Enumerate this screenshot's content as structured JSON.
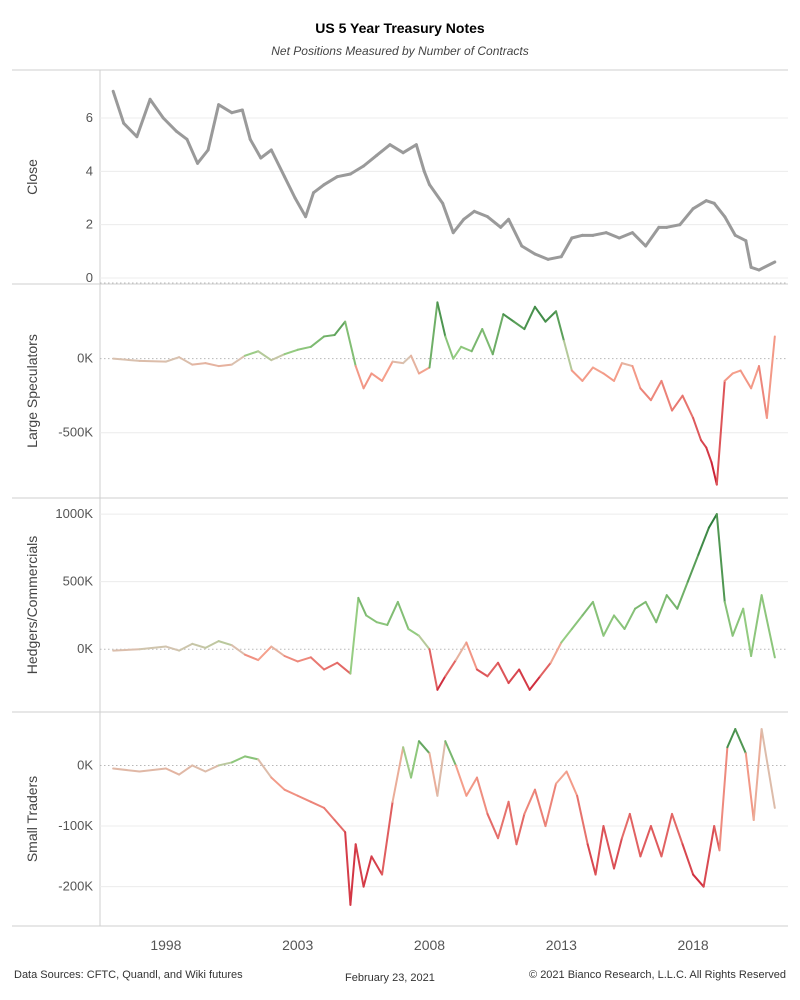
{
  "title": "US 5 Year Treasury Notes",
  "subtitle": "Net Positions Measured by Number of Contracts",
  "footer": {
    "sources": "Data Sources: CFTC, Quandl, and Wiki futures",
    "date": "February 23, 2021",
    "copyright": "© 2021 Bianco Research, L.L.C. All Rights Reserved"
  },
  "chart_data": [
    {
      "type": "line",
      "ylabel": "Close",
      "color": "#9a9a9a",
      "ylim": [
        0,
        7.5
      ],
      "yticks": [
        0,
        2,
        4,
        6
      ],
      "ytick_labels": [
        "0",
        "2",
        "4",
        "6"
      ],
      "x": [
        1996.0,
        1996.4,
        1996.9,
        1997.4,
        1997.9,
        1998.4,
        1998.8,
        1999.2,
        1999.6,
        2000.0,
        2000.5,
        2000.9,
        2001.2,
        2001.6,
        2002.0,
        2002.5,
        2002.9,
        2003.3,
        2003.6,
        2004.0,
        2004.5,
        2005.0,
        2005.5,
        2006.0,
        2006.5,
        2007.0,
        2007.5,
        2007.8,
        2008.0,
        2008.5,
        2008.9,
        2009.3,
        2009.7,
        2010.2,
        2010.7,
        2011.0,
        2011.5,
        2012.0,
        2012.5,
        2013.0,
        2013.4,
        2013.8,
        2014.2,
        2014.7,
        2015.2,
        2015.7,
        2016.2,
        2016.7,
        2017.0,
        2017.5,
        2018.0,
        2018.5,
        2018.8,
        2019.2,
        2019.6,
        2020.0,
        2020.2,
        2020.5,
        2021.1
      ],
      "values": [
        7.0,
        5.8,
        5.3,
        6.7,
        6.0,
        5.5,
        5.2,
        4.3,
        4.8,
        6.5,
        6.2,
        6.3,
        5.2,
        4.5,
        4.8,
        3.8,
        3.0,
        2.3,
        3.2,
        3.5,
        3.8,
        3.9,
        4.2,
        4.6,
        5.0,
        4.7,
        5.0,
        4.0,
        3.5,
        2.8,
        1.7,
        2.2,
        2.5,
        2.3,
        1.9,
        2.2,
        1.2,
        0.9,
        0.7,
        0.8,
        1.5,
        1.6,
        1.6,
        1.7,
        1.5,
        1.7,
        1.2,
        1.9,
        1.9,
        2.0,
        2.6,
        2.9,
        2.8,
        2.3,
        1.6,
        1.4,
        0.4,
        0.3,
        0.6
      ]
    },
    {
      "type": "line",
      "ylabel": "Large Speculators",
      "ylim": [
        -900000,
        450000
      ],
      "yticks": [
        0,
        -500000
      ],
      "ytick_labels": [
        "0K",
        "-500K"
      ],
      "x": [
        1996.0,
        1997.0,
        1998.0,
        1998.5,
        1999.0,
        1999.5,
        2000.0,
        2000.5,
        2001.0,
        2001.5,
        2002.0,
        2002.5,
        2003.0,
        2003.5,
        2004.0,
        2004.4,
        2004.8,
        2005.2,
        2005.5,
        2005.8,
        2006.2,
        2006.6,
        2007.0,
        2007.3,
        2007.6,
        2008.0,
        2008.3,
        2008.6,
        2008.9,
        2009.2,
        2009.6,
        2010.0,
        2010.4,
        2010.8,
        2011.2,
        2011.6,
        2012.0,
        2012.4,
        2012.8,
        2013.1,
        2013.4,
        2013.8,
        2014.2,
        2014.6,
        2015.0,
        2015.3,
        2015.7,
        2016.0,
        2016.4,
        2016.8,
        2017.2,
        2017.6,
        2018.0,
        2018.3,
        2018.5,
        2018.7,
        2018.9,
        2019.2,
        2019.5,
        2019.8,
        2020.2,
        2020.5,
        2020.8,
        2021.1
      ],
      "values": [
        0,
        -15000,
        -20000,
        10000,
        -40000,
        -30000,
        -50000,
        -40000,
        20000,
        50000,
        -10000,
        30000,
        60000,
        80000,
        150000,
        160000,
        250000,
        -50000,
        -200000,
        -100000,
        -150000,
        -20000,
        -30000,
        20000,
        -100000,
        -60000,
        380000,
        150000,
        0,
        80000,
        50000,
        200000,
        30000,
        300000,
        250000,
        200000,
        350000,
        250000,
        320000,
        120000,
        -80000,
        -150000,
        -60000,
        -100000,
        -150000,
        -30000,
        -50000,
        -200000,
        -280000,
        -150000,
        -350000,
        -250000,
        -400000,
        -550000,
        -600000,
        -700000,
        -850000,
        -150000,
        -100000,
        -80000,
        -200000,
        -50000,
        -400000,
        150000
      ]
    },
    {
      "type": "line",
      "ylabel": "Hedgers/Commercials",
      "ylim": [
        -420000,
        1060000
      ],
      "yticks": [
        1000000,
        500000,
        0
      ],
      "ytick_labels": [
        "1000K",
        "500K",
        "0K"
      ],
      "x": [
        1996.0,
        1997.0,
        1998.0,
        1998.5,
        1999.0,
        1999.5,
        2000.0,
        2000.5,
        2001.0,
        2001.5,
        2002.0,
        2002.5,
        2003.0,
        2003.5,
        2004.0,
        2004.5,
        2005.0,
        2005.3,
        2005.6,
        2006.0,
        2006.4,
        2006.8,
        2007.2,
        2007.6,
        2008.0,
        2008.3,
        2008.6,
        2009.0,
        2009.4,
        2009.8,
        2010.2,
        2010.6,
        2011.0,
        2011.4,
        2011.8,
        2012.2,
        2012.6,
        2013.0,
        2013.4,
        2013.8,
        2014.2,
        2014.6,
        2015.0,
        2015.4,
        2015.8,
        2016.2,
        2016.6,
        2017.0,
        2017.4,
        2017.8,
        2018.2,
        2018.6,
        2018.9,
        2019.2,
        2019.5,
        2019.9,
        2020.2,
        2020.6,
        2021.1
      ],
      "values": [
        -10000,
        0,
        20000,
        -10000,
        40000,
        10000,
        60000,
        30000,
        -40000,
        -80000,
        20000,
        -50000,
        -90000,
        -60000,
        -150000,
        -100000,
        -180000,
        380000,
        250000,
        200000,
        180000,
        350000,
        150000,
        100000,
        0,
        -300000,
        -200000,
        -80000,
        50000,
        -150000,
        -200000,
        -100000,
        -250000,
        -150000,
        -300000,
        -200000,
        -100000,
        50000,
        150000,
        250000,
        350000,
        100000,
        250000,
        150000,
        300000,
        350000,
        200000,
        400000,
        300000,
        500000,
        700000,
        900000,
        1000000,
        350000,
        100000,
        300000,
        -50000,
        400000,
        -60000
      ]
    },
    {
      "type": "line",
      "ylabel": "Small Traders",
      "ylim": [
        -255000,
        75000
      ],
      "yticks": [
        0,
        -100000,
        -200000
      ],
      "ytick_labels": [
        "0K",
        "-100K",
        "-200K"
      ],
      "x": [
        1996.0,
        1997.0,
        1998.0,
        1998.5,
        1999.0,
        1999.5,
        2000.0,
        2000.5,
        2001.0,
        2001.5,
        2002.0,
        2002.5,
        2003.0,
        2003.5,
        2004.0,
        2004.4,
        2004.8,
        2005.0,
        2005.2,
        2005.5,
        2005.8,
        2006.2,
        2006.6,
        2007.0,
        2007.3,
        2007.6,
        2008.0,
        2008.3,
        2008.6,
        2009.0,
        2009.4,
        2009.8,
        2010.2,
        2010.6,
        2011.0,
        2011.3,
        2011.6,
        2012.0,
        2012.4,
        2012.8,
        2013.2,
        2013.6,
        2014.0,
        2014.3,
        2014.6,
        2015.0,
        2015.3,
        2015.6,
        2016.0,
        2016.4,
        2016.8,
        2017.2,
        2017.6,
        2018.0,
        2018.4,
        2018.8,
        2019.0,
        2019.3,
        2019.6,
        2020.0,
        2020.3,
        2020.6,
        2021.1
      ],
      "values": [
        -5000,
        -10000,
        -5000,
        -15000,
        0,
        -10000,
        0,
        5000,
        15000,
        10000,
        -20000,
        -40000,
        -50000,
        -60000,
        -70000,
        -90000,
        -110000,
        -230000,
        -130000,
        -200000,
        -150000,
        -180000,
        -60000,
        30000,
        -20000,
        40000,
        20000,
        -50000,
        40000,
        0,
        -50000,
        -20000,
        -80000,
        -120000,
        -60000,
        -130000,
        -80000,
        -40000,
        -100000,
        -30000,
        -10000,
        -50000,
        -130000,
        -180000,
        -100000,
        -170000,
        -120000,
        -80000,
        -150000,
        -100000,
        -150000,
        -80000,
        -130000,
        -180000,
        -200000,
        -100000,
        -140000,
        30000,
        60000,
        20000,
        -90000,
        60000,
        -70000
      ]
    }
  ],
  "x_axis": {
    "ticks": [
      1998,
      2003,
      2008,
      2013,
      2018
    ],
    "labels": [
      "1998",
      "2003",
      "2008",
      "2013",
      "2018"
    ]
  }
}
